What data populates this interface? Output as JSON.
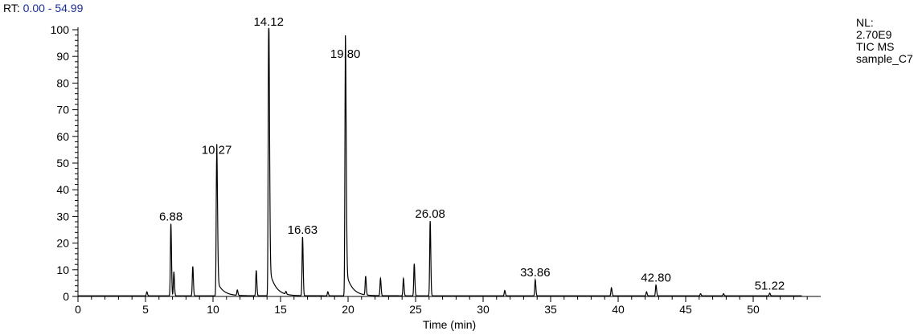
{
  "header": {
    "rt_prefix": "RT:",
    "rt_range": "0.00 - 54.99"
  },
  "info_box": {
    "lines": [
      "NL:",
      "2.70E9",
      "TIC  MS",
      "sample_C7"
    ]
  },
  "colors": {
    "trace": "#000000",
    "axis": "#000000",
    "rt_range_text": "#1a2d9a"
  },
  "chart_data": {
    "type": "line",
    "title": "",
    "xlabel": "Time (min)",
    "ylabel": "",
    "xlim": [
      0,
      55
    ],
    "ylim": [
      0,
      100
    ],
    "x_ticks": [
      0,
      5,
      10,
      15,
      20,
      25,
      30,
      35,
      40,
      45,
      50
    ],
    "y_ticks": [
      0,
      10,
      20,
      30,
      40,
      50,
      60,
      70,
      80,
      90,
      100
    ],
    "grid": false,
    "labeled_peaks": [
      {
        "rt": 6.88,
        "label": "6.88",
        "intensity": 27
      },
      {
        "rt": 10.27,
        "label": "10.27",
        "intensity": 52
      },
      {
        "rt": 14.12,
        "label": "14.12",
        "intensity": 100
      },
      {
        "rt": 16.63,
        "label": "16.63",
        "intensity": 22
      },
      {
        "rt": 19.8,
        "label": "19.80",
        "intensity": 88
      },
      {
        "rt": 26.08,
        "label": "26.08",
        "intensity": 28
      },
      {
        "rt": 33.86,
        "label": "33.86",
        "intensity": 6
      },
      {
        "rt": 42.8,
        "label": "42.80",
        "intensity": 4
      },
      {
        "rt": 51.22,
        "label": "51.22",
        "intensity": 1
      }
    ],
    "minor_peaks": [
      {
        "rt": 5.1,
        "intensity": 1.5
      },
      {
        "rt": 7.1,
        "intensity": 9
      },
      {
        "rt": 8.5,
        "intensity": 11
      },
      {
        "rt": 11.8,
        "intensity": 2
      },
      {
        "rt": 13.2,
        "intensity": 9.5
      },
      {
        "rt": 15.4,
        "intensity": 1
      },
      {
        "rt": 18.5,
        "intensity": 1.5
      },
      {
        "rt": 21.3,
        "intensity": 7
      },
      {
        "rt": 22.4,
        "intensity": 6.5
      },
      {
        "rt": 24.1,
        "intensity": 6.5
      },
      {
        "rt": 24.9,
        "intensity": 12
      },
      {
        "rt": 31.6,
        "intensity": 2
      },
      {
        "rt": 39.5,
        "intensity": 3
      },
      {
        "rt": 42.1,
        "intensity": 1.5
      },
      {
        "rt": 46.1,
        "intensity": 0.8
      },
      {
        "rt": 47.8,
        "intensity": 0.8
      }
    ]
  }
}
